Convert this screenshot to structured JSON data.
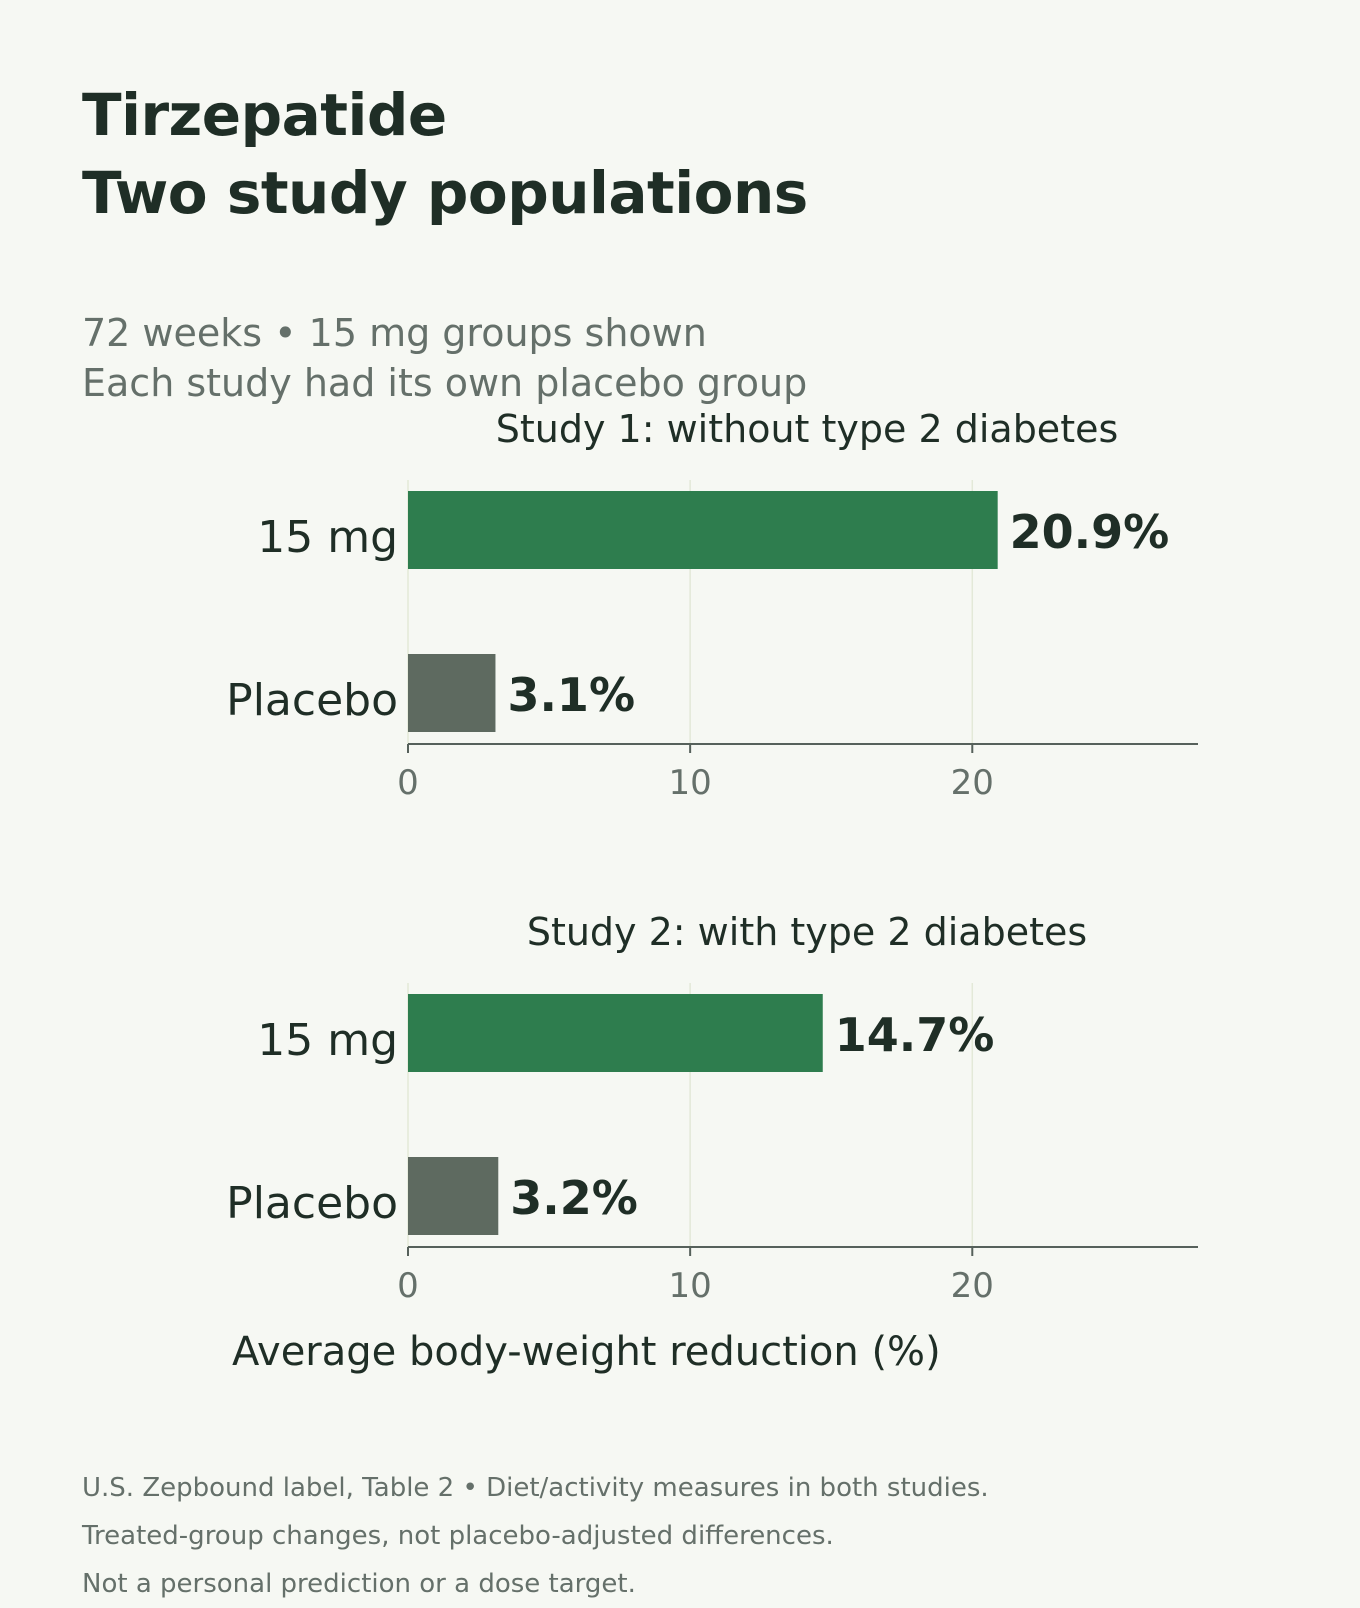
{
  "title_lines": [
    "Tirzepatide",
    "Two study populations"
  ],
  "subtitle_lines": [
    "72 weeks • 15 mg groups shown",
    "Each study had its own placebo group"
  ],
  "footnotes": [
    "U.S. Zepbound label, Table 2 • Diet/activity measures in both studies.",
    "Treated-group changes, not placebo-adjusted differences.",
    "Not a personal prediction or a dose target."
  ],
  "colors": {
    "treatment": "#2e7d4e",
    "placebo": "#5e6a60",
    "axis": "#56615b",
    "grid": "#e3e9d8"
  },
  "chart_data": [
    {
      "type": "bar",
      "orientation": "horizontal",
      "title": "Study 1: without type 2 diabetes",
      "categories": [
        "15 mg",
        "Placebo"
      ],
      "values": [
        20.9,
        3.1
      ],
      "value_labels": [
        "20.9%",
        "3.1%"
      ],
      "xticks": [
        0,
        10,
        20
      ],
      "xlim": [
        0,
        28
      ],
      "grid": true
    },
    {
      "type": "bar",
      "orientation": "horizontal",
      "title": "Study 2: with type 2 diabetes",
      "categories": [
        "15 mg",
        "Placebo"
      ],
      "values": [
        14.7,
        3.2
      ],
      "value_labels": [
        "14.7%",
        "3.2%"
      ],
      "xticks": [
        0,
        10,
        20
      ],
      "xlim": [
        0,
        28
      ],
      "grid": true,
      "xlabel": "Average body-weight reduction (%)"
    }
  ]
}
